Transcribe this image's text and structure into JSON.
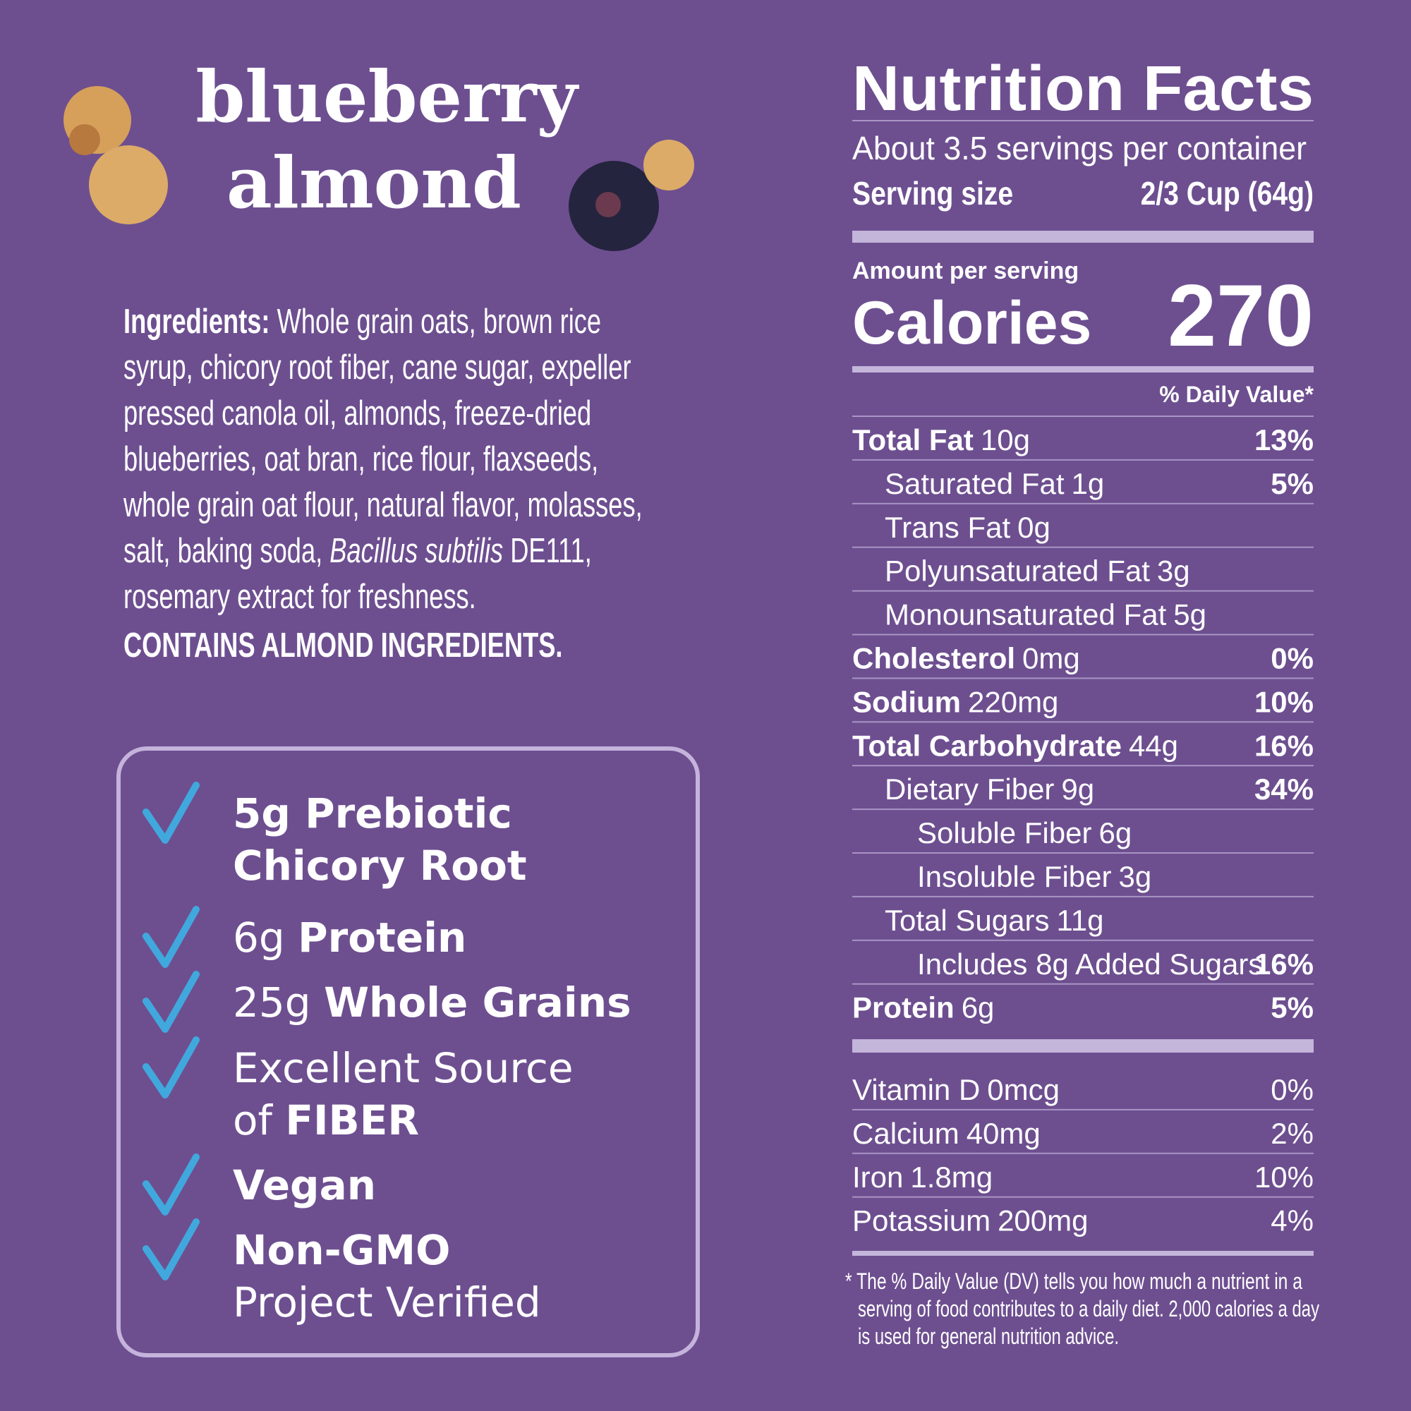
{
  "title": {
    "line1": "blueberry",
    "line2": "almond"
  },
  "ingredients": {
    "label": "Ingredients:",
    "text_before": "Whole grain oats, brown rice syrup, chicory root fiber, cane sugar, expeller pressed canola oil, almonds, freeze-dried blueberries, oat bran, rice flour, flaxseeds, whole grain oat flour, natural flavor, molasses, salt, baking soda,",
    "italic": "Bacillus subtilis",
    "text_after": "DE111, rosemary extract for freshness.",
    "allergen": "CONTAINS ALMOND INGREDIENTS."
  },
  "claims": [
    {
      "lines": [
        [
          {
            "text": "5g Prebiotic",
            "bold": true
          }
        ],
        [
          {
            "text": "Chicory Root",
            "bold": true
          }
        ]
      ]
    },
    {
      "lines": [
        [
          {
            "text": "6g ",
            "bold": false
          },
          {
            "text": "Protein",
            "bold": true
          }
        ]
      ]
    },
    {
      "lines": [
        [
          {
            "text": "25g ",
            "bold": false
          },
          {
            "text": "Whole Grains",
            "bold": true
          }
        ]
      ]
    },
    {
      "lines": [
        [
          {
            "text": "Excellent Source",
            "bold": false
          }
        ],
        [
          {
            "text": "of ",
            "bold": false
          },
          {
            "text": "FIBER",
            "bold": true
          }
        ]
      ]
    },
    {
      "lines": [
        [
          {
            "text": "Vegan",
            "bold": true
          }
        ]
      ]
    },
    {
      "lines": [
        [
          {
            "text": "Non-GMO",
            "bold": true
          }
        ],
        [
          {
            "text": "Project Verified",
            "bold": false
          }
        ]
      ]
    }
  ],
  "nutrition": {
    "title": "Nutrition Facts",
    "servings": "About 3.5 servings per container",
    "serving_size_label": "Serving size",
    "serving_size": "2/3 Cup (64g)",
    "amount_label": "Amount per serving",
    "calories_label": "Calories",
    "calories": 270,
    "dv_header": "% Daily Value*",
    "nutrients": [
      {
        "name": "Total Fat",
        "amount": "10g",
        "dv": "13%",
        "bold": true,
        "indent": 0
      },
      {
        "name": "Saturated Fat",
        "amount": "1g",
        "dv": "5%",
        "bold": false,
        "indent": 1
      },
      {
        "name": "Trans Fat",
        "amount": "0g",
        "bold": false,
        "indent": 1
      },
      {
        "name": "Polyunsaturated Fat",
        "amount": "3g",
        "bold": false,
        "indent": 1
      },
      {
        "name": "Monounsaturated Fat",
        "amount": "5g",
        "bold": false,
        "indent": 1
      },
      {
        "name": "Cholesterol",
        "amount": "0mg",
        "dv": "0%",
        "bold": true,
        "indent": 0
      },
      {
        "name": "Sodium",
        "amount": "220mg",
        "dv": "10%",
        "bold": true,
        "indent": 0
      },
      {
        "name": "Total Carbohydrate",
        "amount": "44g",
        "dv": "16%",
        "bold": true,
        "indent": 0
      },
      {
        "name": "Dietary Fiber",
        "amount": "9g",
        "dv": "34%",
        "bold": false,
        "indent": 1
      },
      {
        "name": "Soluble Fiber",
        "amount": "6g",
        "bold": false,
        "indent": 2
      },
      {
        "name": "Insoluble Fiber",
        "amount": "3g",
        "bold": false,
        "indent": 2
      },
      {
        "name": "Total Sugars",
        "amount": "11g",
        "bold": false,
        "indent": 1
      },
      {
        "name": "Includes 8g Added Sugars",
        "dv": "16%",
        "bold": false,
        "indent": 2
      },
      {
        "name": "Protein",
        "amount": "6g",
        "dv": "5%",
        "bold": true,
        "indent": 0
      }
    ],
    "vitamins": [
      {
        "name": "Vitamin D",
        "amount": "0mcg",
        "dv": "0%"
      },
      {
        "name": "Calcium",
        "amount": "40mg",
        "dv": "2%"
      },
      {
        "name": "Iron",
        "amount": "1.8mg",
        "dv": "10%"
      },
      {
        "name": "Potassium",
        "amount": "200mg",
        "dv": "4%"
      }
    ],
    "footnote": [
      "* The % Daily Value (DV) tells you how much a nutrient in a",
      "serving of food contributes to a daily diet. 2,000 calories a day",
      "is used for general nutrition advice."
    ]
  }
}
